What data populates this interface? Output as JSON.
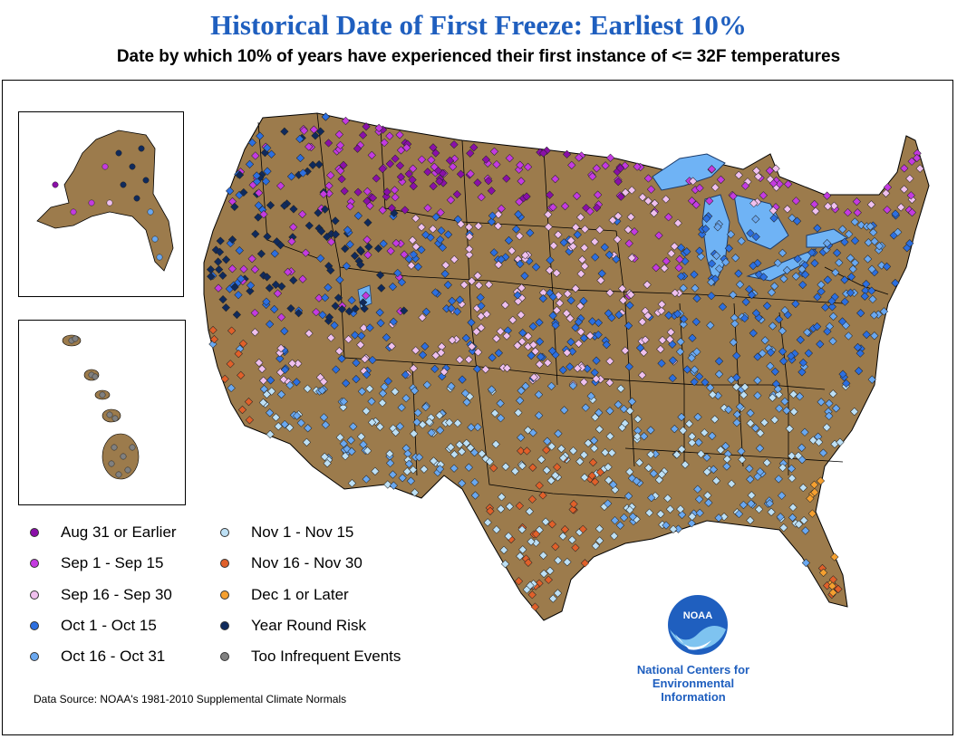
{
  "title": "Historical Date of First Freeze: Earliest 10%",
  "subtitle": "Date by which 10% of years have experienced their first instance of <= 32F temperatures",
  "legend": [
    {
      "label": "Aug 31 or Earlier",
      "color": "#8a0fa8"
    },
    {
      "label": "Sep 1 - Sep 15",
      "color": "#c43be0"
    },
    {
      "label": "Sep 16 - Sep 30",
      "color": "#f0c0ee"
    },
    {
      "label": "Oct 1 - Oct 15",
      "color": "#2c6fe0"
    },
    {
      "label": "Oct 16 - Oct 31",
      "color": "#6aa8f0"
    },
    {
      "label": "Nov 1 - Nov 15",
      "color": "#bde0f5"
    },
    {
      "label": "Nov 16 - Nov 30",
      "color": "#e0602a"
    },
    {
      "label": "Dec 1 or Later",
      "color": "#f5a030"
    },
    {
      "label": "Year Round Risk",
      "color": "#0f2a5c"
    },
    {
      "label": "Too Infrequent Events",
      "color": "#808080"
    }
  ],
  "source": "Data Source: NOAA's 1981-2010 Supplemental Climate Normals",
  "ncei": {
    "line1": "National Centers for",
    "line2": "Environmental",
    "line3": "Information"
  },
  "logo_text": "NOAA",
  "colors": {
    "land": "#9c7b4c",
    "water": "#6fb3f5",
    "title": "#1f5fbf"
  }
}
